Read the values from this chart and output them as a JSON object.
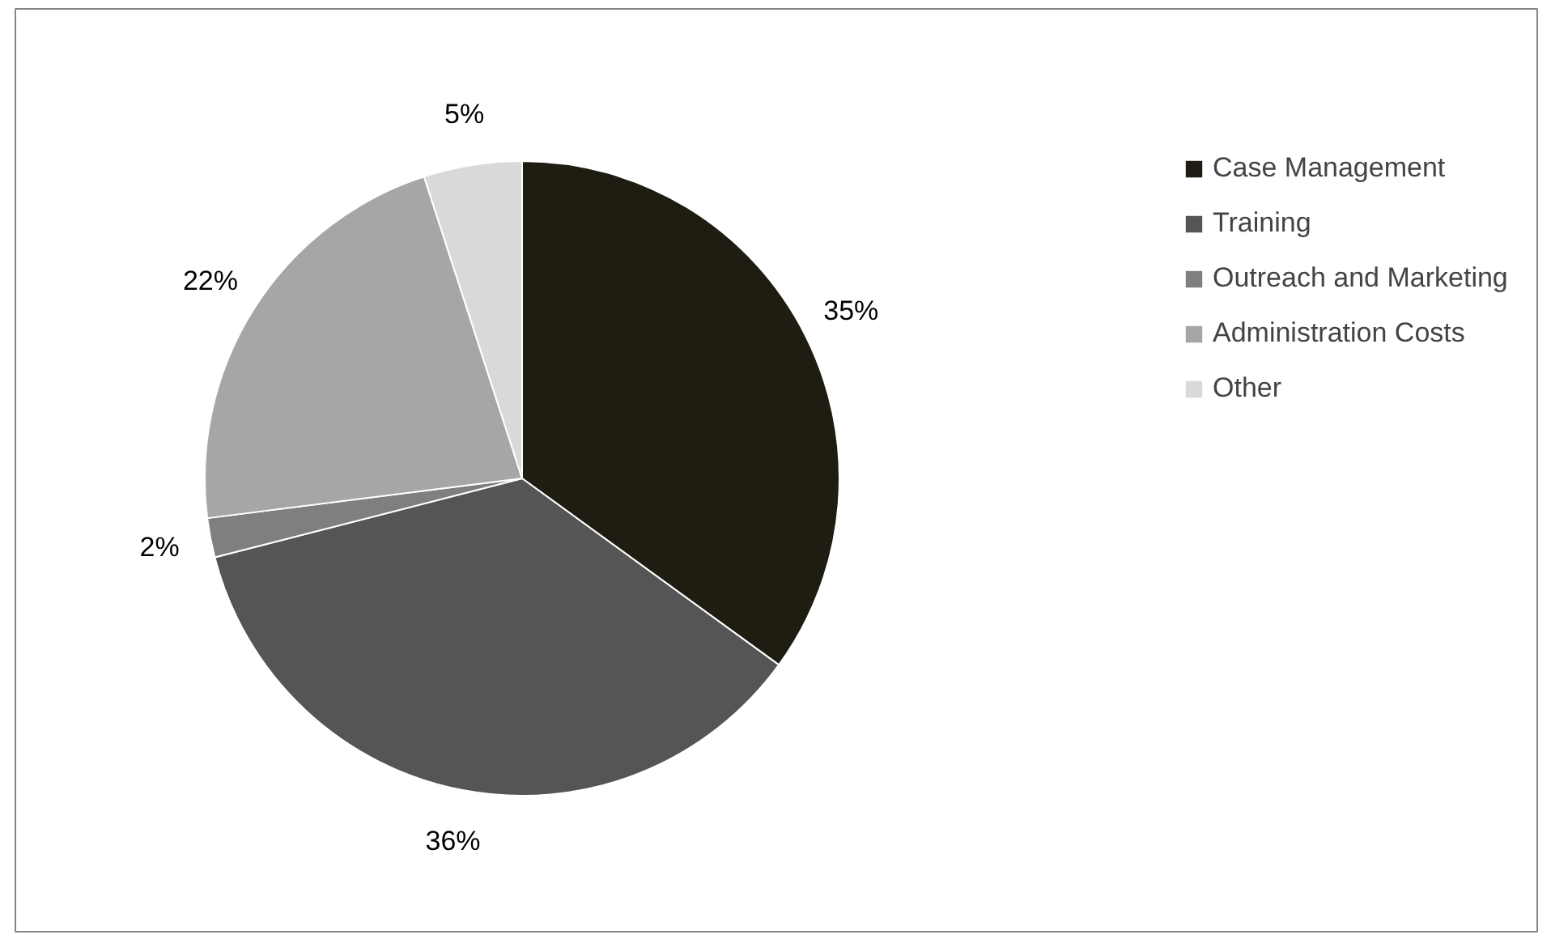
{
  "chart_data": {
    "type": "pie",
    "categories": [
      "Case Management",
      "Training",
      "Outreach and Marketing",
      "Administration Costs",
      "Other"
    ],
    "values": [
      35,
      36,
      2,
      22,
      5
    ],
    "colors": [
      "#1f1d12",
      "#555555",
      "#7f7f7f",
      "#a6a6a6",
      "#d9d9d9"
    ],
    "value_labels": [
      "35%",
      "36%",
      "2%",
      "22%",
      "5%"
    ],
    "legend": "right"
  }
}
